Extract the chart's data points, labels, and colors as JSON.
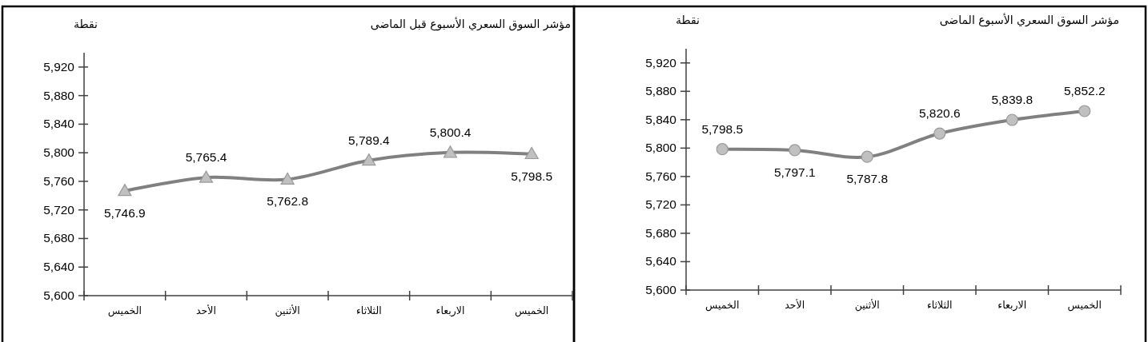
{
  "chart_data": [
    {
      "type": "line",
      "title": "مؤشر السوق السعري الأسبوع قبل الماضى",
      "ylabel": "نقطة",
      "categories": [
        "الخميس",
        "الأحد",
        "الأثنين",
        "الثلاثاء",
        "الاربعاء",
        "الخميس"
      ],
      "series": [
        {
          "color": "#808080",
          "values": [
            5746.9,
            5765.4,
            5762.8,
            5789.4,
            5800.4,
            5798.5
          ],
          "value_labels": [
            "5,746.9",
            "5,765.4",
            "5,762.8",
            "5,789.4",
            "5,800.4",
            "5,798.5"
          ]
        }
      ],
      "ylim": [
        5600,
        5940
      ],
      "yticks": [
        {
          "value": 5600,
          "label": "5,600"
        },
        {
          "value": 5640,
          "label": "5,640"
        },
        {
          "value": 5680,
          "label": "5,680"
        },
        {
          "value": 5720,
          "label": "5,720"
        },
        {
          "value": 5760,
          "label": "5,760"
        },
        {
          "value": 5800,
          "label": "5,800"
        },
        {
          "value": 5840,
          "label": "5,840"
        },
        {
          "value": 5880,
          "label": "5,880"
        },
        {
          "value": 5920,
          "label": "5,920"
        }
      ],
      "marker": "triangle"
    },
    {
      "type": "line",
      "title": "مؤشر السوق السعري الأسبوع الماضى",
      "ylabel": "نقطة",
      "categories": [
        "الخميس",
        "الأحد",
        "الأثنين",
        "الثلاثاء",
        "الاربعاء",
        "الخميس"
      ],
      "series": [
        {
          "color": "#808080",
          "values": [
            5798.5,
            5797.1,
            5787.8,
            5820.6,
            5839.8,
            5852.2
          ],
          "value_labels": [
            "5,798.5",
            "5,797.1",
            "5,787.8",
            "5,820.6",
            "5,839.8",
            "5,852.2"
          ]
        }
      ],
      "ylim": [
        5600,
        5940
      ],
      "yticks": [
        {
          "value": 5600,
          "label": "5,600"
        },
        {
          "value": 5640,
          "label": "5,640"
        },
        {
          "value": 5680,
          "label": "5,680"
        },
        {
          "value": 5720,
          "label": "5,720"
        },
        {
          "value": 5760,
          "label": "5,760"
        },
        {
          "value": 5800,
          "label": "5,800"
        },
        {
          "value": 5840,
          "label": "5,840"
        },
        {
          "value": 5880,
          "label": "5,880"
        },
        {
          "value": 5920,
          "label": "5,920"
        }
      ],
      "marker": "circle"
    }
  ]
}
